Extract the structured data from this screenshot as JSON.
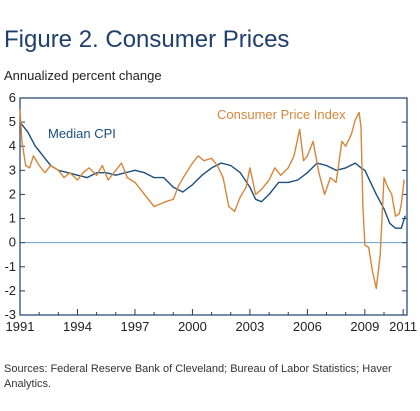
{
  "header": {
    "title": "Figure 2. Consumer Prices",
    "ylabel": "Annualized percent change"
  },
  "footer": {
    "sources": "Sources: Federal Reserve Bank of Cleveland; Bureau of Labor Statistics; Haver Analytics."
  },
  "colors": {
    "median": "#1c4e80",
    "cpi": "#d4873b",
    "axis": "#1f3f6e",
    "zero": "#6a9fc8"
  },
  "chart_data": {
    "type": "line",
    "title": "Figure 2. Consumer Prices",
    "ylabel": "Annualized percent change",
    "xlim": [
      1991,
      2011.2
    ],
    "ylim": [
      -3,
      6
    ],
    "xticks": [
      1991,
      1994,
      1997,
      2000,
      2003,
      2006,
      2009,
      2011
    ],
    "yticks": [
      -3,
      -2,
      -1,
      0,
      1,
      2,
      3,
      4,
      5,
      6
    ],
    "annotations": [
      {
        "text": "Median CPI",
        "series": "Median CPI"
      },
      {
        "text": "Consumer Price Index",
        "series": "Consumer Price Index"
      }
    ],
    "series": [
      {
        "name": "Median CPI",
        "color": "#1c4e80",
        "points": [
          [
            1991.0,
            5.0
          ],
          [
            1991.2,
            4.8
          ],
          [
            1991.4,
            4.6
          ],
          [
            1991.6,
            4.3
          ],
          [
            1991.8,
            4.0
          ],
          [
            1992.0,
            3.8
          ],
          [
            1992.3,
            3.5
          ],
          [
            1992.6,
            3.2
          ],
          [
            1993.0,
            3.0
          ],
          [
            1993.5,
            2.9
          ],
          [
            1994.0,
            2.8
          ],
          [
            1994.5,
            2.7
          ],
          [
            1995.0,
            2.9
          ],
          [
            1995.5,
            2.9
          ],
          [
            1996.0,
            2.8
          ],
          [
            1996.5,
            2.9
          ],
          [
            1997.0,
            3.0
          ],
          [
            1997.5,
            2.9
          ],
          [
            1998.0,
            2.7
          ],
          [
            1998.5,
            2.7
          ],
          [
            1999.0,
            2.3
          ],
          [
            1999.5,
            2.1
          ],
          [
            2000.0,
            2.4
          ],
          [
            2000.5,
            2.8
          ],
          [
            2001.0,
            3.1
          ],
          [
            2001.5,
            3.3
          ],
          [
            2002.0,
            3.2
          ],
          [
            2002.5,
            2.9
          ],
          [
            2003.0,
            2.3
          ],
          [
            2003.3,
            1.8
          ],
          [
            2003.6,
            1.7
          ],
          [
            2004.0,
            2.0
          ],
          [
            2004.5,
            2.5
          ],
          [
            2005.0,
            2.5
          ],
          [
            2005.5,
            2.6
          ],
          [
            2006.0,
            2.9
          ],
          [
            2006.5,
            3.3
          ],
          [
            2007.0,
            3.2
          ],
          [
            2007.5,
            3.0
          ],
          [
            2008.0,
            3.1
          ],
          [
            2008.5,
            3.3
          ],
          [
            2008.8,
            3.1
          ],
          [
            2009.0,
            3.0
          ],
          [
            2009.3,
            2.5
          ],
          [
            2009.6,
            2.0
          ],
          [
            2010.0,
            1.4
          ],
          [
            2010.3,
            0.8
          ],
          [
            2010.6,
            0.6
          ],
          [
            2010.9,
            0.6
          ],
          [
            2011.1,
            1.1
          ]
        ]
      },
      {
        "name": "Consumer Price Index",
        "color": "#d4873b",
        "points": [
          [
            1991.0,
            5.5
          ],
          [
            1991.1,
            4.2
          ],
          [
            1991.3,
            3.2
          ],
          [
            1991.5,
            3.1
          ],
          [
            1991.7,
            3.6
          ],
          [
            1992.0,
            3.2
          ],
          [
            1992.3,
            2.9
          ],
          [
            1992.6,
            3.2
          ],
          [
            1993.0,
            3.0
          ],
          [
            1993.3,
            2.7
          ],
          [
            1993.6,
            2.9
          ],
          [
            1994.0,
            2.6
          ],
          [
            1994.3,
            2.9
          ],
          [
            1994.6,
            3.1
          ],
          [
            1995.0,
            2.8
          ],
          [
            1995.3,
            3.2
          ],
          [
            1995.6,
            2.6
          ],
          [
            1996.0,
            3.0
          ],
          [
            1996.3,
            3.3
          ],
          [
            1996.6,
            2.7
          ],
          [
            1997.0,
            2.5
          ],
          [
            1997.3,
            2.2
          ],
          [
            1997.6,
            1.9
          ],
          [
            1998.0,
            1.5
          ],
          [
            1998.3,
            1.6
          ],
          [
            1998.6,
            1.7
          ],
          [
            1999.0,
            1.8
          ],
          [
            1999.3,
            2.4
          ],
          [
            1999.6,
            2.8
          ],
          [
            2000.0,
            3.3
          ],
          [
            2000.3,
            3.6
          ],
          [
            2000.6,
            3.4
          ],
          [
            2001.0,
            3.5
          ],
          [
            2001.3,
            3.2
          ],
          [
            2001.6,
            2.7
          ],
          [
            2001.9,
            1.5
          ],
          [
            2002.2,
            1.3
          ],
          [
            2002.5,
            1.9
          ],
          [
            2002.8,
            2.3
          ],
          [
            2003.0,
            3.1
          ],
          [
            2003.3,
            2.0
          ],
          [
            2003.6,
            2.2
          ],
          [
            2004.0,
            2.6
          ],
          [
            2004.3,
            3.1
          ],
          [
            2004.6,
            2.8
          ],
          [
            2005.0,
            3.1
          ],
          [
            2005.3,
            3.6
          ],
          [
            2005.6,
            4.7
          ],
          [
            2005.8,
            3.4
          ],
          [
            2006.0,
            3.6
          ],
          [
            2006.3,
            4.2
          ],
          [
            2006.6,
            2.9
          ],
          [
            2006.9,
            2.0
          ],
          [
            2007.2,
            2.7
          ],
          [
            2007.5,
            2.5
          ],
          [
            2007.8,
            4.2
          ],
          [
            2008.0,
            4.0
          ],
          [
            2008.3,
            4.5
          ],
          [
            2008.5,
            5.1
          ],
          [
            2008.7,
            5.4
          ],
          [
            2008.8,
            4.8
          ],
          [
            2008.9,
            1.5
          ],
          [
            2009.0,
            -0.1
          ],
          [
            2009.2,
            -0.2
          ],
          [
            2009.4,
            -1.2
          ],
          [
            2009.6,
            -1.9
          ],
          [
            2009.8,
            -0.5
          ],
          [
            2010.0,
            2.7
          ],
          [
            2010.2,
            2.3
          ],
          [
            2010.4,
            2.0
          ],
          [
            2010.6,
            1.1
          ],
          [
            2010.8,
            1.2
          ],
          [
            2010.9,
            1.6
          ],
          [
            2011.05,
            2.6
          ]
        ]
      }
    ]
  }
}
